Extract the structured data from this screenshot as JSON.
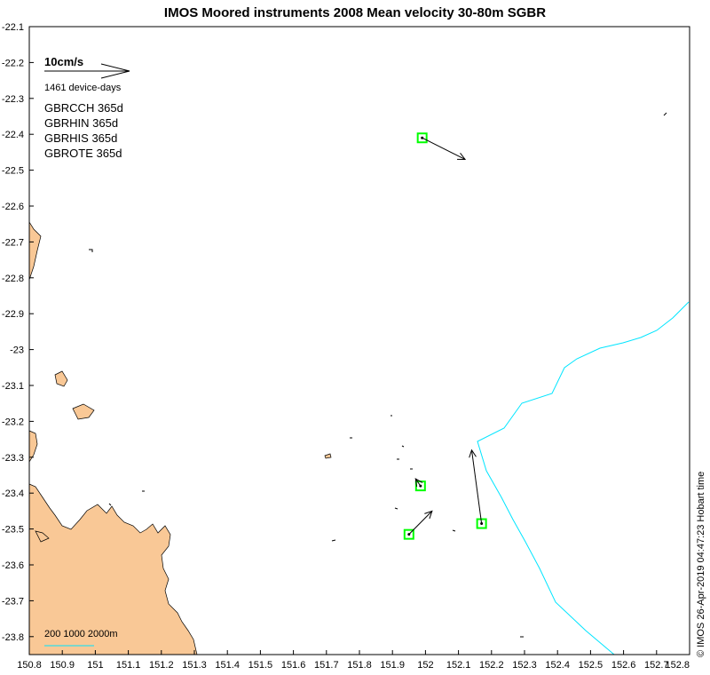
{
  "title": "IMOS Moored instruments 2008 Mean velocity 30-80m SGBR",
  "stamp": "© IMOS 26-Apr-2019 04:47:23 Hobart time",
  "legend": {
    "scale_speed": "10cm/s",
    "device_days": "1461 device-days",
    "moorings": [
      "GBRCCH 365d",
      "GBRHIN 365d",
      "GBRHIS 365d",
      "GBROTE 365d"
    ]
  },
  "bathy_scale_label": "200 1000 2000m",
  "x_ticks": [
    "150.8",
    "150.9",
    "151",
    "151.1",
    "151.2",
    "151.3",
    "151.4",
    "151.5",
    "151.6",
    "151.7",
    "151.8",
    "151.9",
    "152",
    "152.1",
    "152.2",
    "152.3",
    "152.4",
    "152.5",
    "152.6",
    "152.7",
    "152.8"
  ],
  "y_ticks": [
    "-22.1",
    "-22.2",
    "-22.3",
    "-22.4",
    "-22.5",
    "-22.6",
    "-22.7",
    "-22.8",
    "-22.9",
    "-23",
    "-23.1",
    "-23.2",
    "-23.3",
    "-23.4",
    "-23.5",
    "-23.6",
    "-23.7",
    "-23.8"
  ],
  "colors": {
    "land": "#f9c896",
    "isobath": "#00e5ff",
    "mooring_box": "#00ff00",
    "arrow": "#000000",
    "scale_line": "#00e5ff"
  },
  "chart_data": {
    "type": "vector-map",
    "xlim": [
      150.8,
      152.8
    ],
    "ylim": [
      -23.85,
      -22.1
    ],
    "moorings": [
      {
        "lon": 151.99,
        "lat": -22.41,
        "u_end_lon": 152.12,
        "u_end_lat": -22.47
      },
      {
        "lon": 151.985,
        "lat": -23.38,
        "u_end_lon": 151.97,
        "u_end_lat": -23.36
      },
      {
        "lon": 151.95,
        "lat": -23.515,
        "u_end_lon": 152.02,
        "u_end_lat": -23.45
      },
      {
        "lon": 152.17,
        "lat": -23.485,
        "u_end_lon": 152.14,
        "u_end_lat": -23.28
      }
    ]
  }
}
